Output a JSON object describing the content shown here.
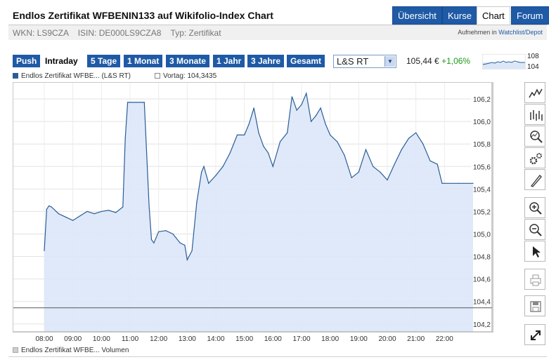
{
  "header": {
    "title": "Endlos Zertifikat WFBENIN133 auf Wikifolio-Index Chart",
    "nav": [
      {
        "label": "Übersicht",
        "active": false
      },
      {
        "label": "Kurse",
        "active": false
      },
      {
        "label": "Chart",
        "active": true
      },
      {
        "label": "Forum",
        "active": false
      }
    ]
  },
  "idbar": {
    "text": "WKN: LS9CZA    ISIN: DE000LS9CZA8    Typ: Zertifikat",
    "watch_prefix": "Aufnehmen in",
    "watch_link": "Watchlist/Depot"
  },
  "toolbar": {
    "ranges": [
      {
        "label": "Push",
        "active": false
      },
      {
        "label": "Intraday",
        "active": true
      },
      {
        "label": "5 Tage",
        "active": false
      },
      {
        "label": "1 Monat",
        "active": false
      },
      {
        "label": "3 Monate",
        "active": false
      },
      {
        "label": "1 Jahr",
        "active": false
      },
      {
        "label": "3 Jahre",
        "active": false
      },
      {
        "label": "Gesamt",
        "active": false
      }
    ],
    "exchange": "L&S RT",
    "price": "105,44 €",
    "change": "+1,06%",
    "mini_high": "108",
    "mini_low": "104"
  },
  "legend": {
    "series": "Endlos Zertifikat WFBE... (L&S RT)",
    "prev": "Vortag: 104,3435"
  },
  "volume_label": "Endlos Zertifikat WFBE... Volumen",
  "colors": {
    "accent": "#1f5aa6",
    "line": "#2a5d96",
    "fill": "#dbe7f8",
    "change": "#1a9a1a"
  },
  "icons": [
    "line-chart-icon",
    "ohlc-chart-icon",
    "compare-icon",
    "settings-icon",
    "draw-pen-icon",
    "zoom-in-icon",
    "zoom-out-icon",
    "pointer-icon",
    "print-icon",
    "save-icon",
    "fullscreen-icon"
  ],
  "chart_data": {
    "type": "area",
    "x": [
      "08:00",
      "08:05",
      "08:10",
      "08:15",
      "08:30",
      "08:45",
      "09:00",
      "09:15",
      "09:30",
      "09:45",
      "10:00",
      "10:15",
      "10:30",
      "10:45",
      "10:50",
      "10:55",
      "11:00",
      "11:30",
      "11:40",
      "11:45",
      "11:50",
      "12:00",
      "12:15",
      "12:30",
      "12:45",
      "12:55",
      "13:00",
      "13:10",
      "13:20",
      "13:30",
      "13:35",
      "13:45",
      "14:00",
      "14:15",
      "14:30",
      "14:45",
      "15:00",
      "15:10",
      "15:20",
      "15:30",
      "15:40",
      "15:50",
      "16:00",
      "16:15",
      "16:30",
      "16:40",
      "16:50",
      "17:00",
      "17:10",
      "17:20",
      "17:30",
      "17:40",
      "17:50",
      "18:00",
      "18:15",
      "18:30",
      "18:45",
      "19:00",
      "19:15",
      "19:30",
      "19:45",
      "20:00",
      "20:15",
      "20:30",
      "20:45",
      "21:00",
      "21:15",
      "21:30",
      "21:45",
      "21:55",
      "22:00",
      "22:30",
      "23:00"
    ],
    "values": [
      104.85,
      105.22,
      105.25,
      105.24,
      105.18,
      105.15,
      105.12,
      105.16,
      105.2,
      105.18,
      105.2,
      105.21,
      105.19,
      105.24,
      105.85,
      106.17,
      106.17,
      106.17,
      105.25,
      104.95,
      104.92,
      105.02,
      105.03,
      105.0,
      104.92,
      104.9,
      104.77,
      104.85,
      105.28,
      105.55,
      105.6,
      105.45,
      105.52,
      105.6,
      105.72,
      105.88,
      105.88,
      105.98,
      106.12,
      105.9,
      105.78,
      105.72,
      105.6,
      105.82,
      105.9,
      106.22,
      106.1,
      106.15,
      106.25,
      106.0,
      106.05,
      106.12,
      105.98,
      105.88,
      105.82,
      105.7,
      105.5,
      105.55,
      105.75,
      105.6,
      105.55,
      105.48,
      105.62,
      105.75,
      105.85,
      105.9,
      105.8,
      105.65,
      105.62,
      105.45,
      105.45,
      105.45,
      105.45
    ],
    "title": "",
    "xlabel": "",
    "ylabel": "",
    "xticks": [
      "08:00",
      "09:00",
      "10:00",
      "11:00",
      "12:00",
      "13:00",
      "14:00",
      "15:00",
      "16:00",
      "17:00",
      "18:00",
      "19:00",
      "20:00",
      "21:00",
      "22:00"
    ],
    "yticks": [
      "104,2",
      "104,4",
      "104,6",
      "104,8",
      "105,0",
      "105,2",
      "105,4",
      "105,6",
      "105,8",
      "106,0",
      "106,2"
    ],
    "ylim": [
      104.13,
      106.35
    ],
    "reference_line": 104.3435,
    "grid": true,
    "y_axis_side": "right"
  }
}
